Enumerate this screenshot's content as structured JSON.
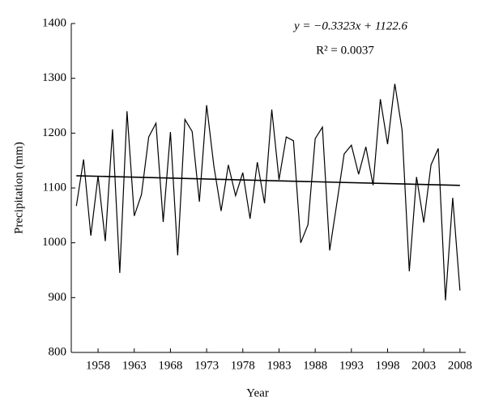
{
  "chart_data": {
    "type": "line",
    "x_label": "Year",
    "y_label": "Precipitation (mm)",
    "annotations": [
      "y = −0.3323x + 1122.6",
      "R² = 0.0037"
    ],
    "x": [
      1955,
      1956,
      1957,
      1958,
      1959,
      1960,
      1961,
      1962,
      1963,
      1964,
      1965,
      1966,
      1967,
      1968,
      1969,
      1970,
      1971,
      1972,
      1973,
      1974,
      1975,
      1976,
      1977,
      1978,
      1979,
      1980,
      1981,
      1982,
      1983,
      1984,
      1985,
      1986,
      1987,
      1988,
      1989,
      1990,
      1991,
      1992,
      1993,
      1994,
      1995,
      1996,
      1997,
      1998,
      1999,
      2000,
      2001,
      2002,
      2003,
      2004,
      2005,
      2006,
      2007,
      2008
    ],
    "series": [
      {
        "name": "Precipitation",
        "color": "#000000",
        "values": [
          1067,
          1152,
          1013,
          1122,
          1003,
          1207,
          945,
          1240,
          1049,
          1088,
          1193,
          1218,
          1038,
          1202,
          977,
          1225,
          1203,
          1075,
          1251,
          1140,
          1058,
          1142,
          1086,
          1128,
          1044,
          1147,
          1072,
          1243,
          1115,
          1193,
          1186,
          1000,
          1033,
          1190,
          1211,
          986,
          1073,
          1162,
          1178,
          1125,
          1175,
          1105,
          1262,
          1180,
          1290,
          1206,
          948,
          1120,
          1037,
          1142,
          1172,
          895,
          1082,
          913
        ]
      },
      {
        "name": "Trend",
        "color": "#000000",
        "x": [
          1955,
          2008
        ],
        "values": [
          1122.3,
          1104.7
        ]
      }
    ],
    "xlim": [
      1954.3,
      2008.8
    ],
    "xticks": [
      1958,
      1963,
      1968,
      1973,
      1978,
      1983,
      1988,
      1993,
      1998,
      2003,
      2008
    ],
    "ylim": [
      800,
      1400
    ],
    "yticks": [
      800,
      900,
      1000,
      1100,
      1200,
      1300,
      1400
    ]
  }
}
